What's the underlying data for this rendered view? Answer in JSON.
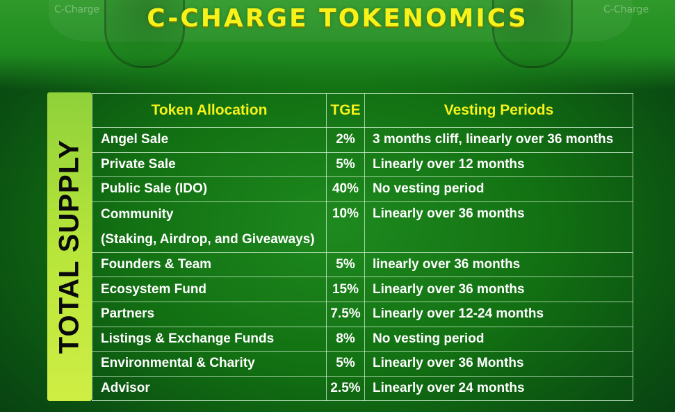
{
  "header": {
    "title": "C-CHARGE TOKENOMICS",
    "logo_left": "C-Charge",
    "logo_right": "C-Charge"
  },
  "side_label": "TOTAL SUPPLY",
  "table": {
    "headers": [
      "Token Allocation",
      "TGE",
      "Vesting Periods"
    ],
    "rows": [
      {
        "allocation": "Angel Sale",
        "tge": "2%",
        "vesting": "3 months cliff, linearly over 36 months"
      },
      {
        "allocation": "Private Sale",
        "tge": "5%",
        "vesting": "Linearly over 12 months"
      },
      {
        "allocation": "Public Sale (IDO)",
        "tge": "40%",
        "vesting": "No vesting period"
      },
      {
        "allocation": "Community",
        "allocation_line2": "(Staking, Airdrop, and Giveaways)",
        "tge": "10%",
        "vesting": "Linearly over 36 months"
      },
      {
        "allocation": "Founders & Team",
        "tge": "5%",
        "vesting": "linearly over 36 months"
      },
      {
        "allocation": "Ecosystem Fund",
        "tge": "15%",
        "vesting": "Linearly over 36 months"
      },
      {
        "allocation": "Partners",
        "tge": "7.5%",
        "vesting": "Linearly over 12-24 months"
      },
      {
        "allocation": "Listings & Exchange Funds",
        "tge": "8%",
        "vesting": "No vesting period"
      },
      {
        "allocation": "Environmental & Charity",
        "tge": "5%",
        "vesting": "Linearly over 36 Months"
      },
      {
        "allocation": "Advisor",
        "tge": "2.5%",
        "vesting": "Linearly over 24 months"
      }
    ]
  }
}
